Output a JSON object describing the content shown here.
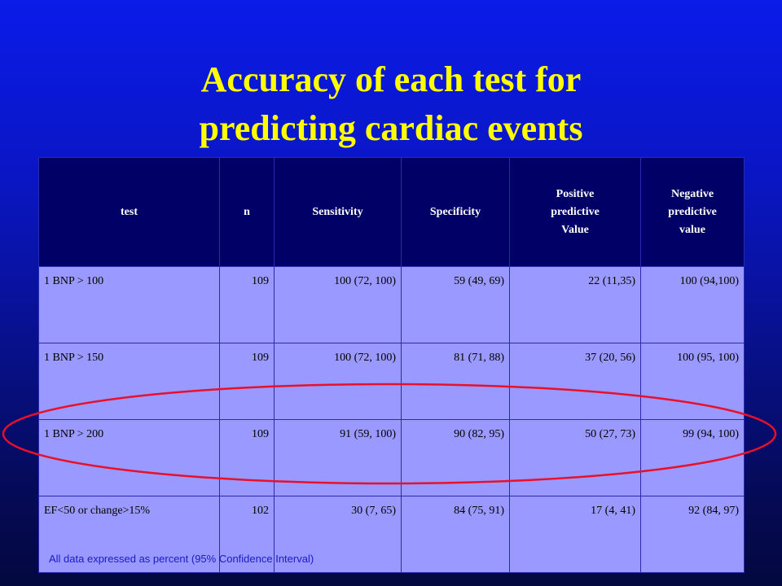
{
  "title": {
    "line1": "Accuracy of each test for",
    "line2": "predicting cardiac events"
  },
  "table": {
    "headers": [
      "test",
      "n",
      "Sensitivity",
      "Specificity",
      "Positive\npredictive\nValue",
      "Negative\npredictive\nvalue"
    ],
    "rows": [
      [
        "1 BNP > 100",
        "109",
        "100 (72, 100)",
        "59 (49, 69)",
        "22 (11,35)",
        "100 (94,100)"
      ],
      [
        "1 BNP > 150",
        "109",
        "100 (72, 100)",
        "81 (71, 88)",
        "37 (20, 56)",
        "100 (95, 100)"
      ],
      [
        "1 BNP > 200",
        "109",
        "91 (59, 100)",
        "90 (82, 95)",
        "50 (27, 73)",
        "99 (94, 100)"
      ],
      [
        "EF<50 or change>15%",
        "102",
        "30 (7, 65)",
        "84 (75, 91)",
        "17 (4, 41)",
        "92 (84, 97)"
      ]
    ]
  },
  "footnote": "All data expressed as percent (95% Confidence Interval)",
  "highlight": {
    "row": 3,
    "color": "#e8102a"
  },
  "colors": {
    "title": "#ffff00",
    "header_bg": "#000066",
    "row_bg": "#9999ff"
  }
}
